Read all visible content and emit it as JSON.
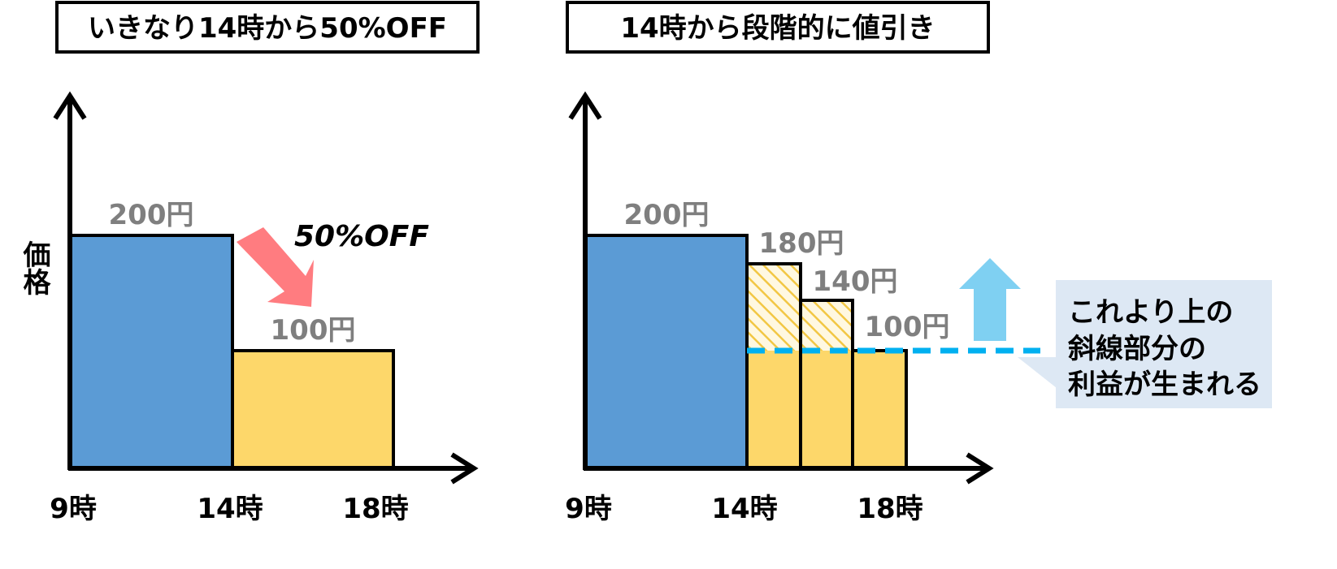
{
  "left_panel": {
    "title": "いきなり14時から50%OFF",
    "y_label": "価格",
    "price_high": "200円",
    "price_low": "100円",
    "discount_label": "50%OFF",
    "x_ticks": [
      "9時",
      "14時",
      "18時"
    ]
  },
  "right_panel": {
    "title": "14時から段階的に値引き",
    "prices": [
      "200円",
      "180円",
      "140円",
      "100円"
    ],
    "x_ticks": [
      "9時",
      "14時",
      "18時"
    ],
    "note_lines": [
      "これより上の",
      "斜線部分の",
      "利益が生まれる"
    ]
  },
  "colors": {
    "blue_bar": "#5b9bd5",
    "yellow_bar": "#fdd76a",
    "discount_arrow": "#ff7c80",
    "up_arrow": "#7fd0f2",
    "dashed_line": "#00b0f0",
    "note_box": "#dde8f4",
    "price_text": "#7f7f7f"
  }
}
